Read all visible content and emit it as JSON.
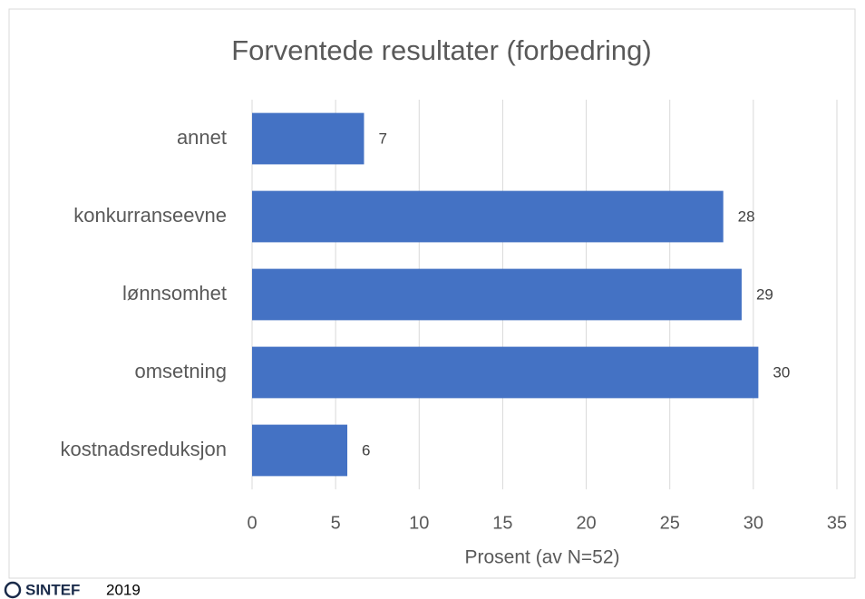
{
  "chart_data": {
    "type": "hbar",
    "title": "Forventede resultater (forbedring)",
    "categories": [
      "annet",
      "konkurranseevne",
      "lønnsomhet",
      "omsetning",
      "kostnadsreduksjon"
    ],
    "values": [
      6.7,
      28.2,
      29.3,
      30.3,
      5.7
    ],
    "value_labels": [
      "7",
      "28",
      "29",
      "30",
      "6"
    ],
    "color": "#4472c4",
    "xlim": [
      0,
      35
    ],
    "xticks": [
      0,
      5,
      10,
      15,
      20,
      25,
      30,
      35
    ],
    "grid": true,
    "xlabel": "Prosent (av N=52)"
  },
  "footer": {
    "logo": "SINTEF",
    "year": "2019"
  }
}
